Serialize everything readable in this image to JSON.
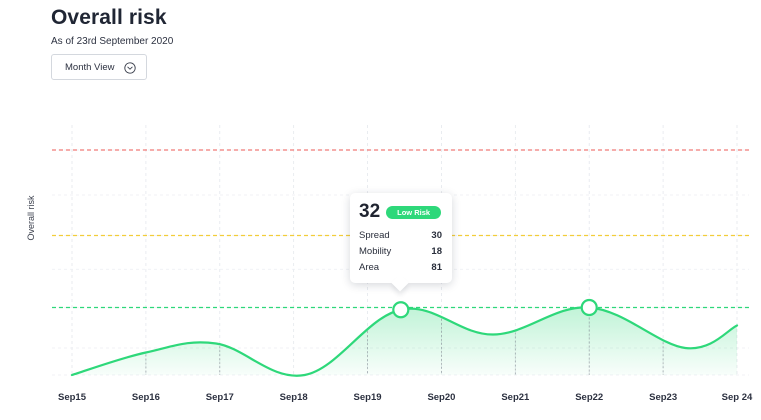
{
  "header": {
    "title": "Overall risk",
    "subtitle": "As of 23rd September 2020"
  },
  "view_select": {
    "label": "Month View",
    "icon": "chevron-down-icon"
  },
  "tooltip": {
    "value": "32",
    "badge": "Low Risk",
    "rows": [
      {
        "label": "Spread",
        "value": "30"
      },
      {
        "label": "Mobility",
        "value": "18"
      },
      {
        "label": "Area",
        "value": "81"
      }
    ]
  },
  "colors": {
    "line": "#2ed87a",
    "high_threshold": "#f07a78",
    "medium_threshold": "#f2cd3a",
    "low_threshold": "#2ed87a",
    "badge": "#2ed87a"
  },
  "chart_data": {
    "type": "area",
    "title": "Overall risk",
    "ylabel": "Overall risk",
    "xlabel": "",
    "categories": [
      "Sep15",
      "Sep16",
      "Sep17",
      "Sep18",
      "Sep19",
      "Sep20",
      "Sep21",
      "Sep22",
      "Sep23",
      "Sep 24"
    ],
    "ylim": [
      0,
      100
    ],
    "grid": true,
    "thresholds": [
      {
        "value": 30,
        "color": "#2ed87a"
      },
      {
        "value": 62,
        "color": "#f2cd3a"
      },
      {
        "value": 100,
        "color": "#f07a78"
      }
    ],
    "series": [
      {
        "points": [
          {
            "x": 0,
            "y": 0
          },
          {
            "x": 1,
            "y": 10
          },
          {
            "x": 1.95,
            "y": 14
          },
          {
            "x": 3.15,
            "y": 0
          },
          {
            "x": 4.45,
            "y": 29
          },
          {
            "x": 5.7,
            "y": 18
          },
          {
            "x": 7,
            "y": 30
          },
          {
            "x": 8.3,
            "y": 12
          },
          {
            "x": 9,
            "y": 22
          }
        ]
      }
    ],
    "highlighted_points": [
      {
        "x": 4.45,
        "y": 29
      },
      {
        "x": 7,
        "y": 30
      }
    ]
  }
}
